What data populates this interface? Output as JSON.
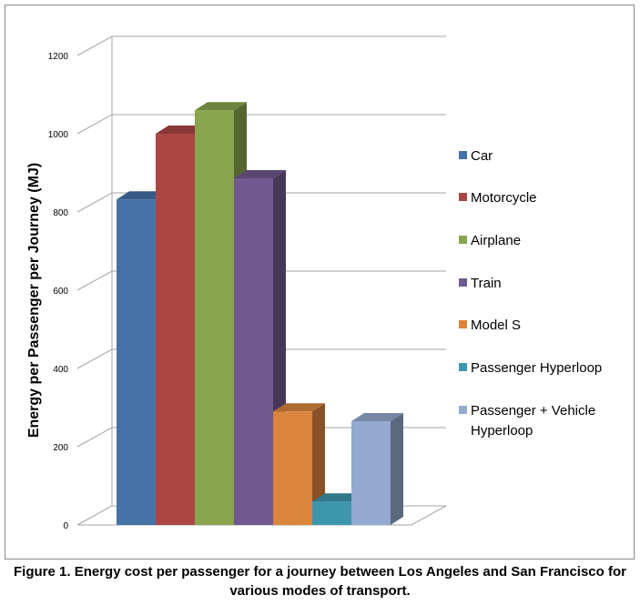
{
  "caption": {
    "line1": "Figure 1. Energy cost per passenger for a journey between Los Angeles and San Francisco for",
    "line2": "various modes of transport."
  },
  "chart_data": {
    "type": "bar",
    "title": "",
    "xlabel": "",
    "ylabel": "Energy per Passenger per Journey (MJ)",
    "ylim": [
      0,
      1200
    ],
    "yticks": [
      "0",
      "200",
      "400",
      "600",
      "800",
      "1000",
      "1200"
    ],
    "grid": true,
    "style": "3d-column",
    "legend_position": "right",
    "series": [
      {
        "name": "Car",
        "value": 832,
        "color": "#4572a7",
        "legend_lines": [
          "Car"
        ]
      },
      {
        "name": "Motorcycle",
        "value": 1000,
        "color": "#aa4643",
        "legend_lines": [
          "Motorcycle"
        ]
      },
      {
        "name": "Airplane",
        "value": 1060,
        "color": "#89a54e",
        "legend_lines": [
          "Airplane"
        ]
      },
      {
        "name": "Train",
        "value": 886,
        "color": "#71588f",
        "legend_lines": [
          "Train"
        ]
      },
      {
        "name": "Model S",
        "value": 290,
        "color": "#db843d",
        "legend_lines": [
          "Model S"
        ]
      },
      {
        "name": "Passenger Hyperloop",
        "value": 60,
        "color": "#3d96ae",
        "legend_lines": [
          "Passenger Hyperloop"
        ]
      },
      {
        "name": "Passenger + Vehicle Hyperloop",
        "value": 265,
        "color": "#93a9cf",
        "legend_lines": [
          "Passenger + Vehicle",
          "Hyperloop"
        ]
      }
    ]
  }
}
